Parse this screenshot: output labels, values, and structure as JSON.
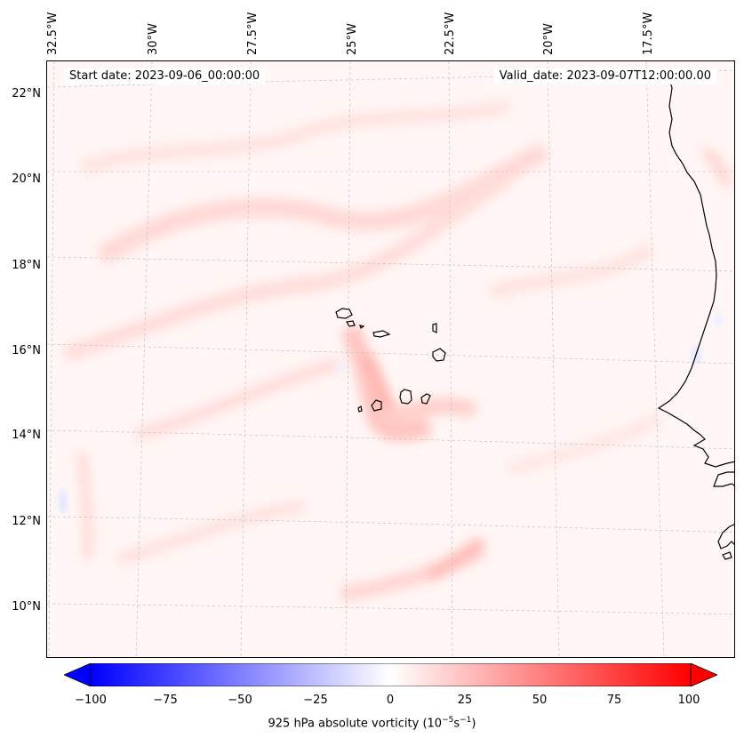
{
  "header": {
    "start_date": "Start date: 2023-09-06_00:00:00",
    "valid_date": "Valid_date: 2023-09-07T12:00:00.00"
  },
  "axes": {
    "lon_labels": [
      "32.5°W",
      "30°W",
      "27.5°W",
      "25°W",
      "22.5°W",
      "20°W",
      "17.5°W"
    ],
    "lat_labels": [
      "22°N",
      "20°N",
      "18°N",
      "16°N",
      "14°N",
      "12°N",
      "10°N"
    ]
  },
  "colorbar": {
    "ticks": [
      "−100",
      "−75",
      "−50",
      "−25",
      "0",
      "25",
      "50",
      "75",
      "100"
    ],
    "title_prefix": "925 hPa absolute vorticity (10",
    "title_exp1": "−5",
    "title_mid": "s",
    "title_exp2": "−1",
    "title_suffix": ")",
    "min_color": "#0000ff",
    "mid_color": "#ffffff",
    "max_color": "#ff0000"
  },
  "colors": {
    "background_field": "#fff6f5",
    "coastline": "#000000",
    "gridline": "#b8b8b8"
  }
}
